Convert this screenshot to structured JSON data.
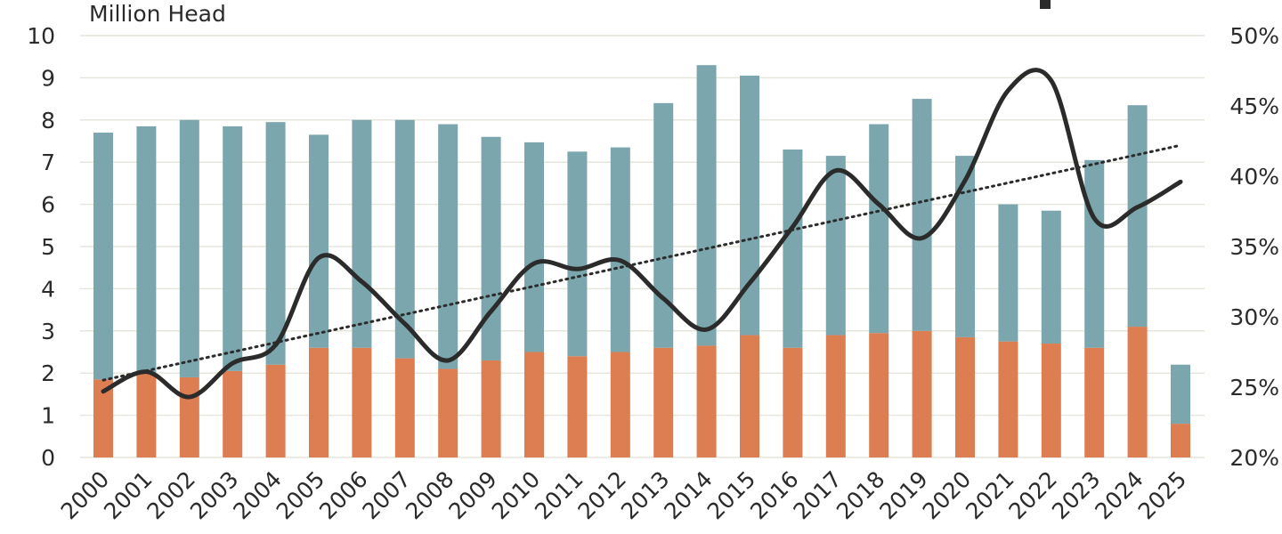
{
  "chart_data": {
    "type": "bar",
    "stacked": true,
    "ylabel": "Million Head",
    "ylim": [
      0,
      10
    ],
    "y_ticks": [
      0,
      1,
      2,
      3,
      4,
      5,
      6,
      7,
      8,
      9,
      10
    ],
    "y2_ticks": [
      "20%",
      "25%",
      "30%",
      "35%",
      "40%",
      "45%",
      "50%"
    ],
    "y2lim": [
      20,
      50
    ],
    "grid": true,
    "categories": [
      "2000",
      "2001",
      "2002",
      "2003",
      "2004",
      "2005",
      "2006",
      "2007",
      "2008",
      "2009",
      "2010",
      "2011",
      "2012",
      "2013",
      "2014",
      "2015",
      "2016",
      "2017",
      "2018",
      "2019",
      "2020",
      "2021",
      "2022",
      "2023",
      "2024",
      "2025"
    ],
    "series": [
      {
        "type": "bar",
        "color": "#dd7d52",
        "values": [
          1.85,
          2.0,
          1.9,
          2.05,
          2.2,
          2.6,
          2.6,
          2.35,
          2.1,
          2.3,
          2.5,
          2.4,
          2.5,
          2.6,
          2.65,
          2.9,
          2.6,
          2.9,
          2.95,
          3.0,
          2.85,
          2.75,
          2.7,
          2.6,
          3.1,
          0.8
        ]
      },
      {
        "type": "bar",
        "color": "#7ba6ad",
        "values": [
          5.85,
          5.85,
          6.1,
          5.8,
          5.75,
          5.05,
          5.4,
          5.65,
          5.8,
          5.3,
          4.97,
          4.85,
          4.85,
          5.8,
          6.65,
          6.15,
          4.7,
          4.25,
          4.95,
          5.5,
          4.3,
          3.25,
          3.15,
          4.45,
          5.25,
          1.4
        ]
      },
      {
        "type": "line",
        "axis": "y2",
        "color": "#2b2b2b",
        "values": [
          24.7,
          26.1,
          24.3,
          26.7,
          28.0,
          34.2,
          32.5,
          29.5,
          26.9,
          30.4,
          33.8,
          33.4,
          34.0,
          31.3,
          29.1,
          32.4,
          36.4,
          40.4,
          38.0,
          35.6,
          39.7,
          46.1,
          46.8,
          37.0,
          37.8,
          39.6
        ]
      },
      {
        "type": "trendline",
        "axis": "y2",
        "color": "#2b2b2b",
        "style": "dotted",
        "from": 25.5,
        "to": 42.2
      }
    ]
  }
}
